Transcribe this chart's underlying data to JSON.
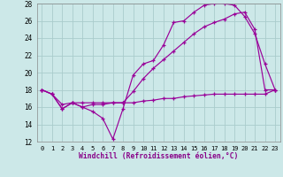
{
  "xlabel": "Windchill (Refroidissement éolien,°C)",
  "line_color": "#990099",
  "background_color": "#cce8e8",
  "grid_color": "#aacccc",
  "xlim": [
    -0.5,
    23.5
  ],
  "ylim": [
    12,
    28
  ],
  "yticks": [
    12,
    14,
    16,
    18,
    20,
    22,
    24,
    26,
    28
  ],
  "xticks": [
    0,
    1,
    2,
    3,
    4,
    5,
    6,
    7,
    8,
    9,
    10,
    11,
    12,
    13,
    14,
    15,
    16,
    17,
    18,
    19,
    20,
    21,
    22,
    23
  ],
  "line1_x": [
    0,
    1,
    2,
    3,
    4,
    5,
    6,
    7,
    8,
    9,
    10,
    11,
    12,
    13,
    14,
    15,
    16,
    17,
    18,
    19,
    20,
    21,
    22,
    23
  ],
  "line1_y": [
    18.0,
    17.5,
    15.8,
    16.5,
    16.0,
    15.5,
    14.7,
    12.3,
    15.8,
    19.7,
    21.0,
    21.4,
    23.2,
    25.8,
    26.0,
    27.0,
    27.8,
    28.0,
    28.0,
    27.8,
    26.5,
    24.5,
    21.0,
    18.0
  ],
  "line2_x": [
    0,
    1,
    2,
    3,
    4,
    5,
    6,
    7,
    8,
    9,
    10,
    11,
    12,
    13,
    14,
    15,
    16,
    17,
    18,
    19,
    20,
    21,
    22,
    23
  ],
  "line2_y": [
    18.0,
    17.5,
    15.8,
    16.5,
    16.0,
    16.3,
    16.3,
    16.5,
    16.5,
    17.8,
    19.3,
    20.5,
    21.5,
    22.5,
    23.5,
    24.5,
    25.3,
    25.8,
    26.2,
    26.8,
    27.0,
    25.0,
    18.0,
    18.0
  ],
  "line3_x": [
    0,
    1,
    2,
    3,
    4,
    5,
    6,
    7,
    8,
    9,
    10,
    11,
    12,
    13,
    14,
    15,
    16,
    17,
    18,
    19,
    20,
    21,
    22,
    23
  ],
  "line3_y": [
    18.0,
    17.5,
    16.3,
    16.5,
    16.5,
    16.5,
    16.5,
    16.5,
    16.5,
    16.5,
    16.7,
    16.8,
    17.0,
    17.0,
    17.2,
    17.3,
    17.4,
    17.5,
    17.5,
    17.5,
    17.5,
    17.5,
    17.5,
    18.0
  ]
}
